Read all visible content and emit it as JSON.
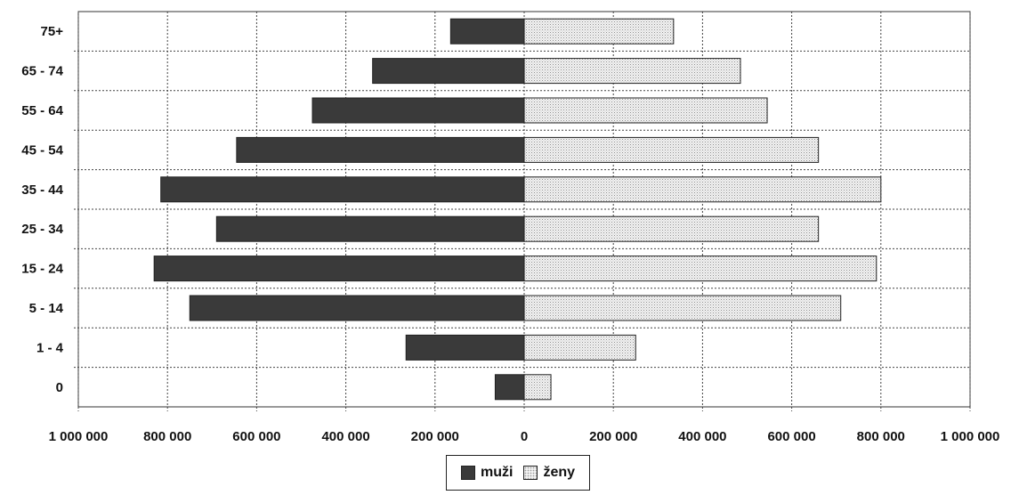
{
  "chart_data": {
    "type": "bar",
    "orientation": "horizontal",
    "layout": "population-pyramid",
    "categories": [
      "0",
      "1 - 4",
      "5 - 14",
      "15 - 24",
      "25 - 34",
      "35 - 44",
      "45 - 54",
      "55 - 64",
      "65 - 74",
      "75+"
    ],
    "series": [
      {
        "name": "muži",
        "side": "left",
        "color": "#3a3a3a",
        "values": [
          65000,
          265000,
          750000,
          830000,
          690000,
          815000,
          645000,
          475000,
          340000,
          165000
        ]
      },
      {
        "name": "ženy",
        "side": "right",
        "color": "#eeeeee",
        "values": [
          60000,
          250000,
          710000,
          790000,
          660000,
          800000,
          660000,
          545000,
          485000,
          335000
        ]
      }
    ],
    "xlim": [
      -1000000,
      1000000
    ],
    "xticks": [
      -1000000,
      -800000,
      -600000,
      -400000,
      -200000,
      0,
      200000,
      400000,
      600000,
      800000,
      1000000
    ],
    "xtick_labels": [
      "1 000 000",
      "800 000",
      "600 000",
      "400 000",
      "200 000",
      "0",
      "200 000",
      "400 000",
      "600 000",
      "800 000",
      "1 000 000"
    ],
    "grid": true,
    "legend_position": "bottom-center"
  }
}
